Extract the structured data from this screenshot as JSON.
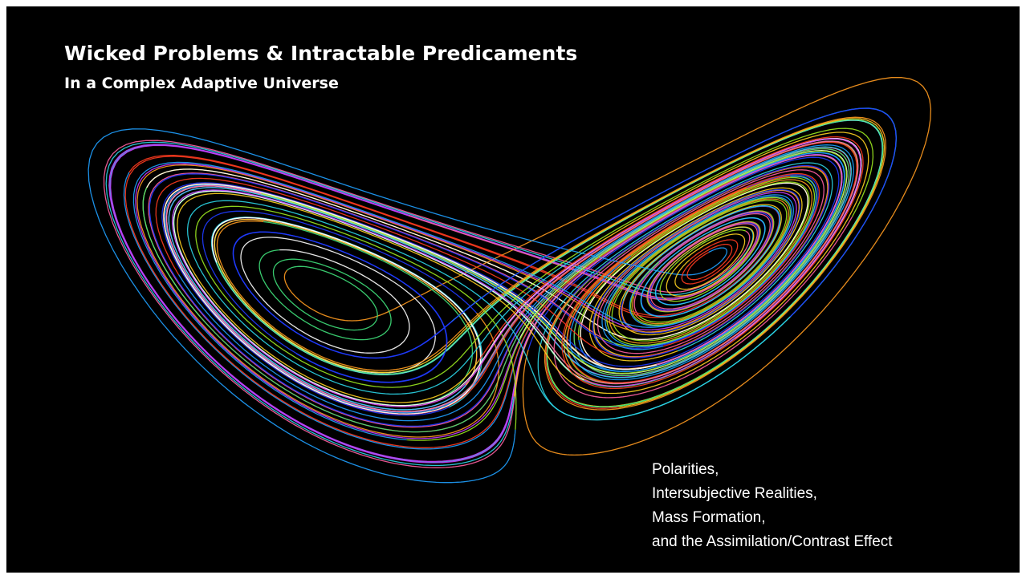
{
  "header": {
    "title": "Wicked Problems & Intractable Predicaments",
    "subtitle": "In a Complex Adaptive Universe"
  },
  "caption": {
    "lines": [
      "Polarities,",
      "Intersubjective Realities,",
      "Mass Formation,",
      "and the Assimilation/Contrast Effect"
    ]
  }
}
